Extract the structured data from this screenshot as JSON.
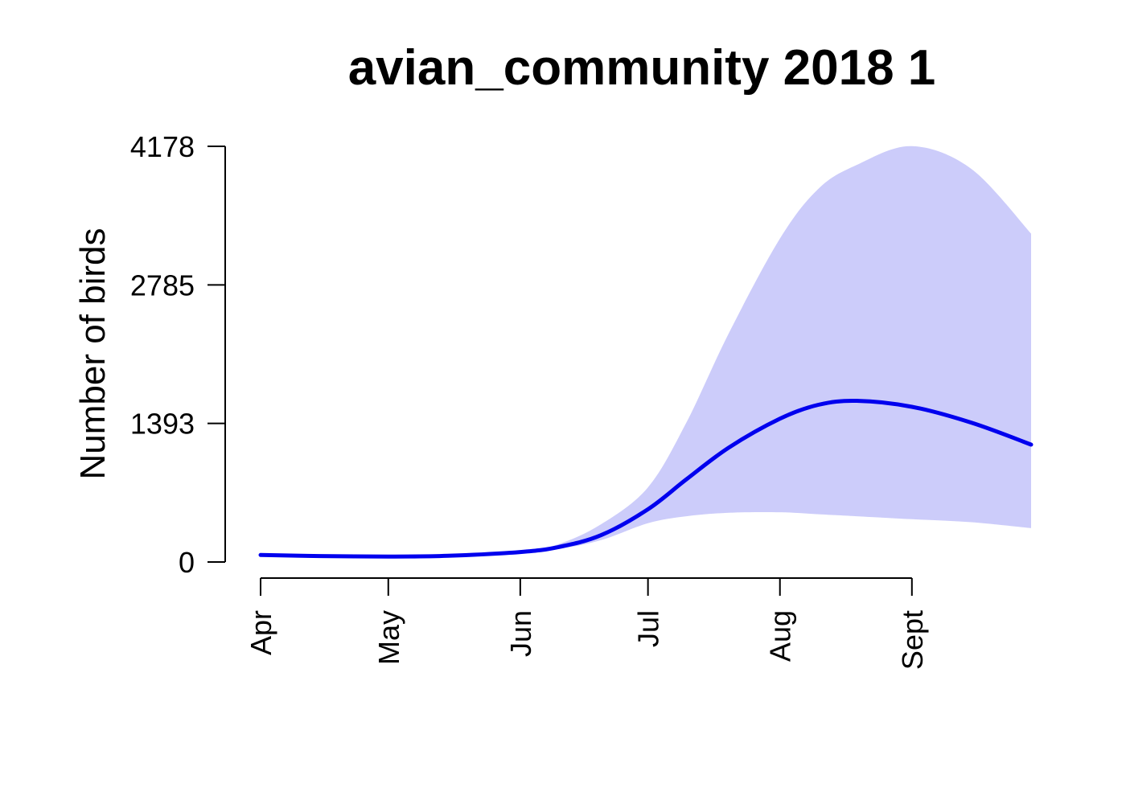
{
  "chart_data": {
    "type": "area",
    "title": "avian_community 2018 1",
    "xlabel": "",
    "ylabel": "Number of birds",
    "x_axis": {
      "ticks": [
        {
          "label": "Apr",
          "date": "2018-04-01"
        },
        {
          "label": "May",
          "date": "2018-05-01"
        },
        {
          "label": "Jun",
          "date": "2018-06-01"
        },
        {
          "label": "Jul",
          "date": "2018-07-01"
        },
        {
          "label": "Aug",
          "date": "2018-08-01"
        },
        {
          "label": "Sept",
          "date": "2018-09-01"
        }
      ]
    },
    "y_axis": {
      "ticks": [
        0,
        1393,
        2785,
        4178
      ],
      "ylim": [
        0,
        4178
      ]
    },
    "grid": false,
    "series": [
      {
        "role": "mean",
        "color": "#0000ee",
        "x": [
          "2018-04-01",
          "2018-04-15",
          "2018-05-01",
          "2018-05-15",
          "2018-06-01",
          "2018-06-10",
          "2018-06-20",
          "2018-07-01",
          "2018-07-10",
          "2018-07-20",
          "2018-08-01",
          "2018-08-10",
          "2018-08-19",
          "2018-09-01",
          "2018-09-15",
          "2018-09-29"
        ],
        "y": [
          70,
          60,
          55,
          62,
          100,
          150,
          270,
          530,
          830,
          1150,
          1440,
          1580,
          1620,
          1560,
          1400,
          1180
        ]
      },
      {
        "role": "band",
        "color": "#ccccfa",
        "x": [
          "2018-04-01",
          "2018-05-15",
          "2018-06-01",
          "2018-06-10",
          "2018-06-20",
          "2018-07-01",
          "2018-07-10",
          "2018-07-20",
          "2018-08-01",
          "2018-08-10",
          "2018-08-19",
          "2018-09-01",
          "2018-09-15",
          "2018-09-29"
        ],
        "lower": [
          70,
          62,
          100,
          130,
          220,
          390,
          460,
          495,
          500,
          480,
          460,
          430,
          400,
          340
        ],
        "upper": [
          70,
          62,
          100,
          180,
          380,
          750,
          1400,
          2300,
          3250,
          3750,
          3990,
          4180,
          3950,
          3300
        ]
      }
    ]
  }
}
